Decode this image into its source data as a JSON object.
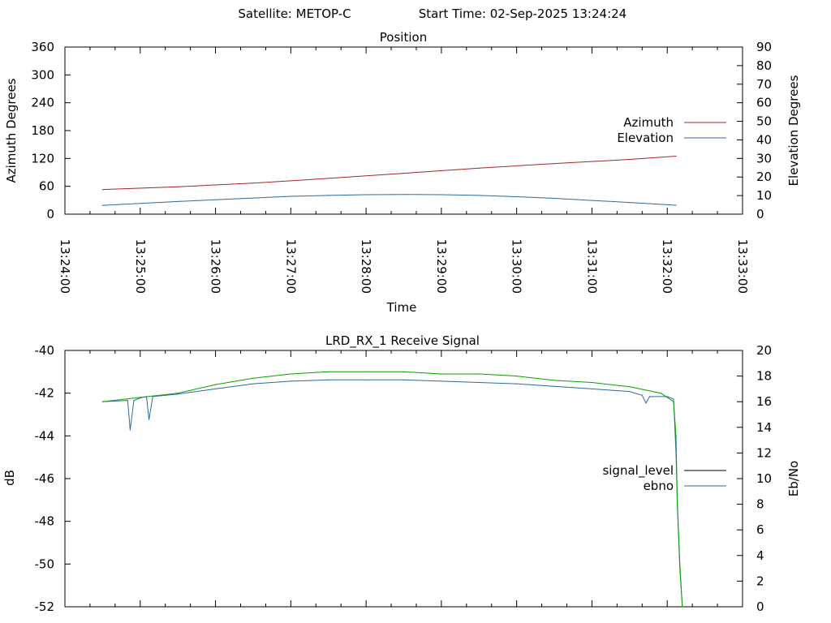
{
  "header": {
    "satellite": "Satellite: METOP-C",
    "start_time": "Start Time: 02-Sep-2025 13:24:24"
  },
  "colors": {
    "azimuth": "#a0282c",
    "elevation": "#2d6a9f",
    "signal_level": "#000000",
    "ebno": "#2d6a9f",
    "ebno_green": "#0aa000"
  },
  "chart_data": [
    {
      "type": "line",
      "title": "Position",
      "xlabel": "Time",
      "ylabel": "Azimuth Degrees",
      "y2label": "Elevation Degrees",
      "xlim": [
        "13:24:00",
        "13:33:00"
      ],
      "ylim": [
        0,
        360
      ],
      "y2lim": [
        0,
        90
      ],
      "x_ticks": [
        "13:24:00",
        "13:25:00",
        "13:26:00",
        "13:27:00",
        "13:28:00",
        "13:29:00",
        "13:30:00",
        "13:31:00",
        "13:32:00",
        "13:33:00"
      ],
      "y_ticks": [
        "0",
        "60",
        "120",
        "180",
        "240",
        "300",
        "360"
      ],
      "y2_ticks": [
        "0",
        "10",
        "20",
        "30",
        "40",
        "50",
        "60",
        "70",
        "80",
        "90"
      ],
      "legend": "right",
      "grid": false,
      "series": [
        {
          "name": "Azimuth",
          "axis": "left",
          "x": [
            "13:24:30",
            "13:25:30",
            "13:26:30",
            "13:27:30",
            "13:28:30",
            "13:29:30",
            "13:30:30",
            "13:31:30",
            "13:32:07"
          ],
          "values": [
            53,
            59,
            67,
            77,
            88,
            99,
            109,
            118,
            125
          ]
        },
        {
          "name": "Elevation",
          "axis": "right",
          "x": [
            "13:24:30",
            "13:25:30",
            "13:26:30",
            "13:27:00",
            "13:27:30",
            "13:28:00",
            "13:28:30",
            "13:29:00",
            "13:29:30",
            "13:30:00",
            "13:30:30",
            "13:31:00",
            "13:31:30",
            "13:32:07"
          ],
          "values": [
            4.7,
            6.8,
            8.7,
            9.6,
            10.1,
            10.5,
            10.6,
            10.5,
            10.1,
            9.4,
            8.5,
            7.4,
            6.3,
            4.8
          ]
        }
      ]
    },
    {
      "type": "line",
      "title": "LRD_RX_1 Receive Signal",
      "ylabel": "dB",
      "y2label": "Eb/No",
      "xlim": [
        "13:24:00",
        "13:33:00"
      ],
      "ylim": [
        -52,
        -40
      ],
      "y2lim": [
        0,
        20
      ],
      "y_ticks": [
        "-40",
        "-42",
        "-44",
        "-46",
        "-48",
        "-50",
        "-52"
      ],
      "y2_ticks": [
        "0",
        "2",
        "4",
        "6",
        "8",
        "10",
        "12",
        "14",
        "16",
        "18",
        "20"
      ],
      "legend": "right",
      "grid": false,
      "series": [
        {
          "name": "signal_level",
          "axis": "left",
          "x": [
            "13:24:30",
            "13:25:00",
            "13:25:30",
            "13:26:00",
            "13:26:30",
            "13:27:00",
            "13:27:30",
            "13:28:00",
            "13:28:30",
            "13:29:00",
            "13:29:30",
            "13:30:00",
            "13:30:30",
            "13:31:00",
            "13:31:30",
            "13:31:55",
            "13:32:05",
            "13:32:07",
            "13:32:08",
            "13:32:10",
            "13:32:12"
          ],
          "values": [
            -42.4,
            -42.2,
            -42.0,
            -41.6,
            -41.3,
            -41.1,
            -41.0,
            -41.0,
            -41.0,
            -41.1,
            -41.1,
            -41.2,
            -41.4,
            -41.5,
            -41.7,
            -42.0,
            -42.4,
            -44.0,
            -47.0,
            -50.0,
            -52.0
          ]
        },
        {
          "name": "ebno",
          "axis": "right",
          "x": [
            "13:24:30",
            "13:24:50",
            "13:24:52",
            "13:24:55",
            "13:25:00",
            "13:25:05",
            "13:25:07",
            "13:25:10",
            "13:25:30",
            "13:26:00",
            "13:26:30",
            "13:27:00",
            "13:27:30",
            "13:28:00",
            "13:28:30",
            "13:29:00",
            "13:29:30",
            "13:30:00",
            "13:30:30",
            "13:31:00",
            "13:31:30",
            "13:31:40",
            "13:31:43",
            "13:31:46",
            "13:32:00",
            "13:32:05",
            "13:32:07",
            "13:32:08",
            "13:32:10",
            "13:32:12"
          ],
          "values": [
            16.0,
            16.1,
            13.8,
            16.1,
            16.3,
            16.4,
            14.6,
            16.4,
            16.6,
            17.0,
            17.4,
            17.6,
            17.7,
            17.7,
            17.7,
            17.6,
            17.5,
            17.4,
            17.2,
            17.0,
            16.8,
            16.5,
            15.9,
            16.4,
            16.4,
            16.2,
            12.0,
            8.0,
            3.0,
            0.0
          ]
        }
      ]
    }
  ]
}
